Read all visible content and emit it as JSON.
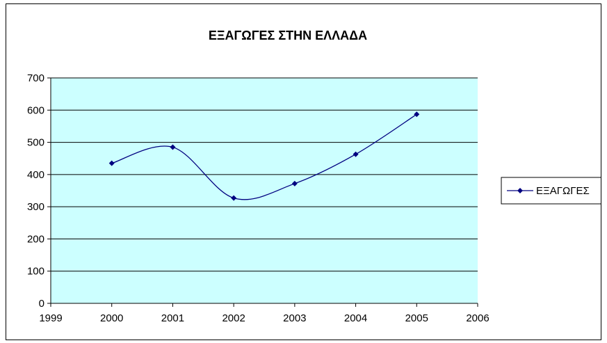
{
  "chart_data": {
    "type": "scatter",
    "title": "ΕΞΑΓΩΓΕΣ ΣΤΗΝ ΕΛΛΑΔΑ",
    "xlabel": "",
    "ylabel": "",
    "xlim": [
      1999,
      2006
    ],
    "ylim": [
      0,
      700
    ],
    "x_ticks": [
      1999,
      2000,
      2001,
      2002,
      2003,
      2004,
      2005,
      2006
    ],
    "y_ticks": [
      0,
      100,
      200,
      300,
      400,
      500,
      600,
      700
    ],
    "smoothed_line": true,
    "grid": "horizontal",
    "legend_position": "right",
    "colors": {
      "plot_background": "#ccffff",
      "series": "#000080",
      "gridline": "#000000"
    },
    "series": [
      {
        "name": "ΕΞΑΓΩΓΕΣ",
        "x": [
          2000,
          2001,
          2002,
          2003,
          2004,
          2005
        ],
        "y": [
          435,
          485,
          327,
          372,
          463,
          587
        ]
      }
    ]
  }
}
